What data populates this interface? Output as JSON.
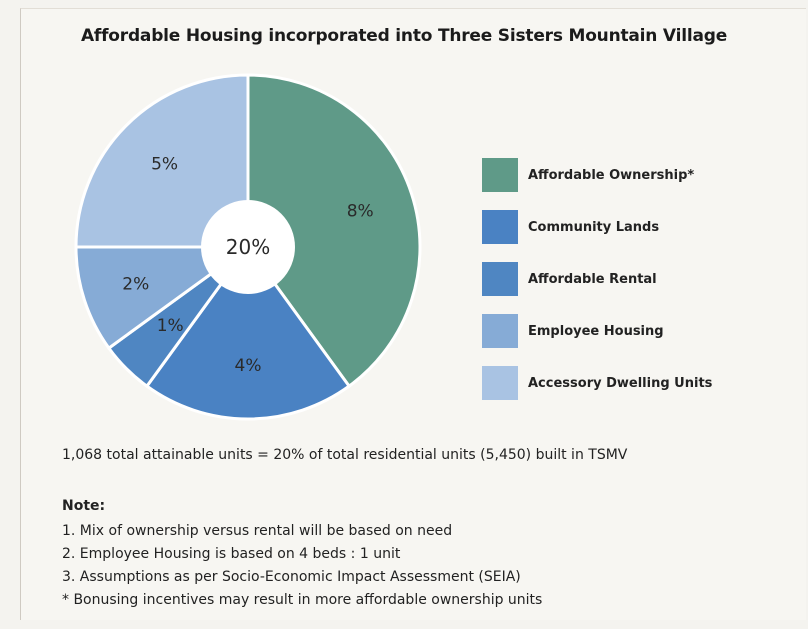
{
  "chart_data": {
    "type": "pie",
    "title": "Affordable Housing incorporated into Three Sisters Mountain Village",
    "center_label": "20%",
    "slices": [
      {
        "name": "Affordable Ownership*",
        "value": 8,
        "label": "8%",
        "color": "#5f9a88"
      },
      {
        "name": "Community Lands",
        "value": 4,
        "label": "4%",
        "color": "#4a82c3"
      },
      {
        "name": "Affordable Rental",
        "value": 1,
        "label": "1%",
        "color": "#4f86c2"
      },
      {
        "name": "Employee Housing",
        "value": 2,
        "label": "2%",
        "color": "#86abd6"
      },
      {
        "name": "Accessory Dwelling Units",
        "value": 5,
        "label": "5%",
        "color": "#a9c3e3"
      }
    ],
    "legend_position": "right"
  },
  "summary": "1,068 total attainable units = 20% of total residential units (5,450) built in TSMV",
  "notes": {
    "heading": "Note:",
    "lines": [
      "1. Mix of ownership versus rental will be based on need",
      "2. Employee Housing is based on 4 beds : 1 unit",
      "3. Assumptions as per Socio-Economic Impact Assessment (SEIA)",
      "* Bonusing incentives may result in more affordable ownership units"
    ]
  }
}
